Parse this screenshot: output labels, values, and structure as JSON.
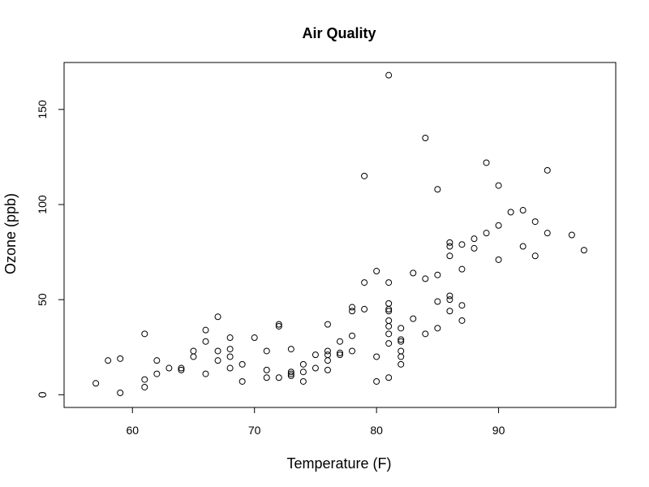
{
  "chart_data": {
    "type": "scatter",
    "title": "Air Quality",
    "xlabel": "Temperature (F)",
    "ylabel": "Ozone (ppb)",
    "xlim": [
      54.4,
      99.6
    ],
    "ylim": [
      -6.68,
      174.68
    ],
    "x_ticks": [
      60,
      70,
      80,
      90
    ],
    "y_ticks": [
      0,
      50,
      100,
      150
    ],
    "grid": false,
    "legend": "none",
    "marker": "open-circle",
    "colors": {
      "points": "#000000",
      "axes": "#000000",
      "background": "#ffffff"
    },
    "points": [
      [
        57,
        6
      ],
      [
        58,
        18
      ],
      [
        59,
        19
      ],
      [
        59,
        1
      ],
      [
        61,
        32
      ],
      [
        61,
        8
      ],
      [
        61,
        4
      ],
      [
        62,
        18
      ],
      [
        62,
        11
      ],
      [
        63,
        14
      ],
      [
        64,
        14
      ],
      [
        64,
        13
      ],
      [
        65,
        23
      ],
      [
        65,
        20
      ],
      [
        66,
        34
      ],
      [
        66,
        28
      ],
      [
        66,
        11
      ],
      [
        67,
        41
      ],
      [
        67,
        23
      ],
      [
        67,
        18
      ],
      [
        68,
        30
      ],
      [
        68,
        24
      ],
      [
        68,
        20
      ],
      [
        68,
        14
      ],
      [
        69,
        16
      ],
      [
        69,
        7
      ],
      [
        70,
        30
      ],
      [
        71,
        23
      ],
      [
        71,
        13
      ],
      [
        71,
        9
      ],
      [
        72,
        37
      ],
      [
        72,
        36
      ],
      [
        72,
        9
      ],
      [
        73,
        24
      ],
      [
        73,
        12
      ],
      [
        73,
        11
      ],
      [
        73,
        10
      ],
      [
        74,
        16
      ],
      [
        74,
        12
      ],
      [
        74,
        7
      ],
      [
        75,
        21
      ],
      [
        75,
        14
      ],
      [
        76,
        37
      ],
      [
        76,
        23
      ],
      [
        76,
        21
      ],
      [
        76,
        18
      ],
      [
        76,
        13
      ],
      [
        77,
        28
      ],
      [
        77,
        22
      ],
      [
        77,
        21
      ],
      [
        78,
        46
      ],
      [
        78,
        44
      ],
      [
        78,
        31
      ],
      [
        78,
        23
      ],
      [
        79,
        115
      ],
      [
        79,
        59
      ],
      [
        79,
        45
      ],
      [
        80,
        65
      ],
      [
        80,
        20
      ],
      [
        80,
        7
      ],
      [
        81,
        168
      ],
      [
        81,
        59
      ],
      [
        81,
        48
      ],
      [
        81,
        45
      ],
      [
        81,
        44
      ],
      [
        81,
        39
      ],
      [
        81,
        36
      ],
      [
        81,
        32
      ],
      [
        81,
        27
      ],
      [
        81,
        9
      ],
      [
        82,
        35
      ],
      [
        82,
        29
      ],
      [
        82,
        28
      ],
      [
        82,
        23
      ],
      [
        82,
        20
      ],
      [
        82,
        16
      ],
      [
        83,
        64
      ],
      [
        83,
        40
      ],
      [
        84,
        135
      ],
      [
        84,
        61
      ],
      [
        84,
        32
      ],
      [
        85,
        108
      ],
      [
        85,
        63
      ],
      [
        85,
        49
      ],
      [
        85,
        35
      ],
      [
        86,
        80
      ],
      [
        86,
        78
      ],
      [
        86,
        73
      ],
      [
        86,
        52
      ],
      [
        86,
        50
      ],
      [
        86,
        44
      ],
      [
        87,
        79
      ],
      [
        87,
        66
      ],
      [
        87,
        47
      ],
      [
        87,
        39
      ],
      [
        88,
        82
      ],
      [
        88,
        77
      ],
      [
        89,
        122
      ],
      [
        89,
        85
      ],
      [
        90,
        110
      ],
      [
        90,
        89
      ],
      [
        90,
        71
      ],
      [
        91,
        96
      ],
      [
        92,
        97
      ],
      [
        92,
        78
      ],
      [
        93,
        91
      ],
      [
        93,
        73
      ],
      [
        94,
        118
      ],
      [
        94,
        85
      ],
      [
        96,
        84
      ],
      [
        97,
        76
      ]
    ]
  }
}
